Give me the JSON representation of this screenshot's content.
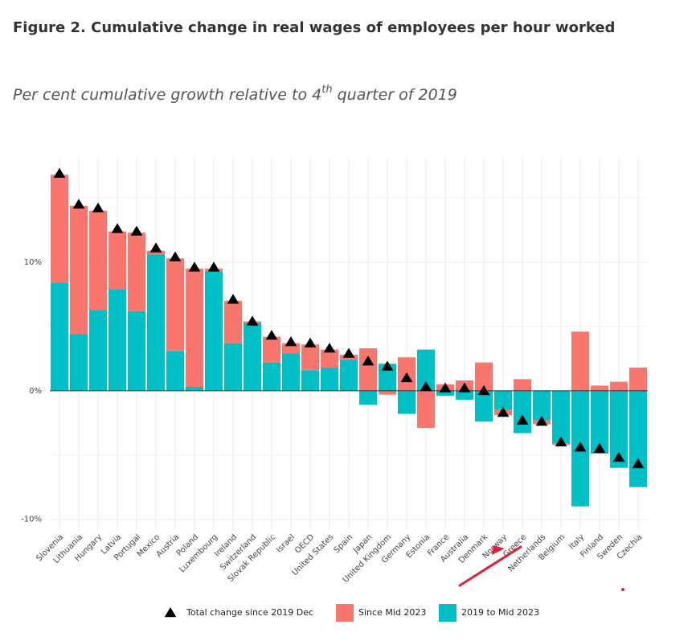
{
  "chart_data": {
    "type": "bar",
    "title": "Figure 2. Cumulative change in real wages of employees per hour worked",
    "subtitle": {
      "before": "Per cent cumulative growth relative to 4",
      "sup": "th",
      "after": " quarter of 2019"
    },
    "categories": [
      "Slovenia",
      "Lithuania",
      "Hungary",
      "Latvia",
      "Portugal",
      "Mexico",
      "Austria",
      "Poland",
      "Luxembourg",
      "Ireland",
      "Switzerland",
      "Slovak Republic",
      "Israel",
      "OECD",
      "United States",
      "Spain",
      "Japan",
      "United Kingdom",
      "Germany",
      "Estonia",
      "France",
      "Australia",
      "Denmark",
      "Norway",
      "Greece",
      "Netherlands",
      "Belgium",
      "Italy",
      "Finland",
      "Sweden",
      "Czechia"
    ],
    "series": [
      {
        "name": "Total change since 2019 Dec",
        "color": "#000000",
        "marker": "triangle",
        "values": [
          16.9,
          14.5,
          14.2,
          12.6,
          12.4,
          11.1,
          10.4,
          9.6,
          9.6,
          7.1,
          5.4,
          4.3,
          3.8,
          3.7,
          3.3,
          2.9,
          2.3,
          1.9,
          1.0,
          0.3,
          0.2,
          0.2,
          0.0,
          -1.7,
          -2.3,
          -2.4,
          -4.0,
          -4.4,
          -4.5,
          -5.2,
          -5.7
        ]
      },
      {
        "name": "Since Mid 2023",
        "color": "#F8766D",
        "values": [
          8.4,
          10.0,
          7.7,
          4.5,
          6.1,
          0.3,
          7.2,
          9.2,
          0.2,
          3.3,
          0.1,
          2.0,
          0.8,
          2.0,
          1.4,
          0.4,
          3.3,
          -0.3,
          2.6,
          -2.9,
          0.5,
          0.8,
          2.2,
          -0.4,
          0.9,
          -0.3,
          -0.1,
          4.6,
          0.4,
          0.7,
          1.8
        ]
      },
      {
        "name": "2019 to Mid 2023",
        "color": "#00BFC4",
        "values": [
          8.4,
          4.4,
          6.3,
          7.9,
          6.2,
          10.6,
          3.1,
          0.3,
          9.3,
          3.7,
          5.3,
          2.2,
          2.9,
          1.6,
          1.8,
          2.4,
          -1.1,
          2.1,
          -1.8,
          3.2,
          -0.4,
          -0.7,
          -2.4,
          -1.5,
          -3.3,
          -2.3,
          -4.1,
          -9.0,
          -4.9,
          -6.0,
          -7.5
        ]
      }
    ],
    "ylim": [
      -10.9,
      18.2
    ],
    "yticks": [
      {
        "value": -10,
        "label": "-10%"
      },
      {
        "value": 0,
        "label": "0%"
      },
      {
        "value": 10,
        "label": "10%"
      }
    ],
    "grid": true
  }
}
